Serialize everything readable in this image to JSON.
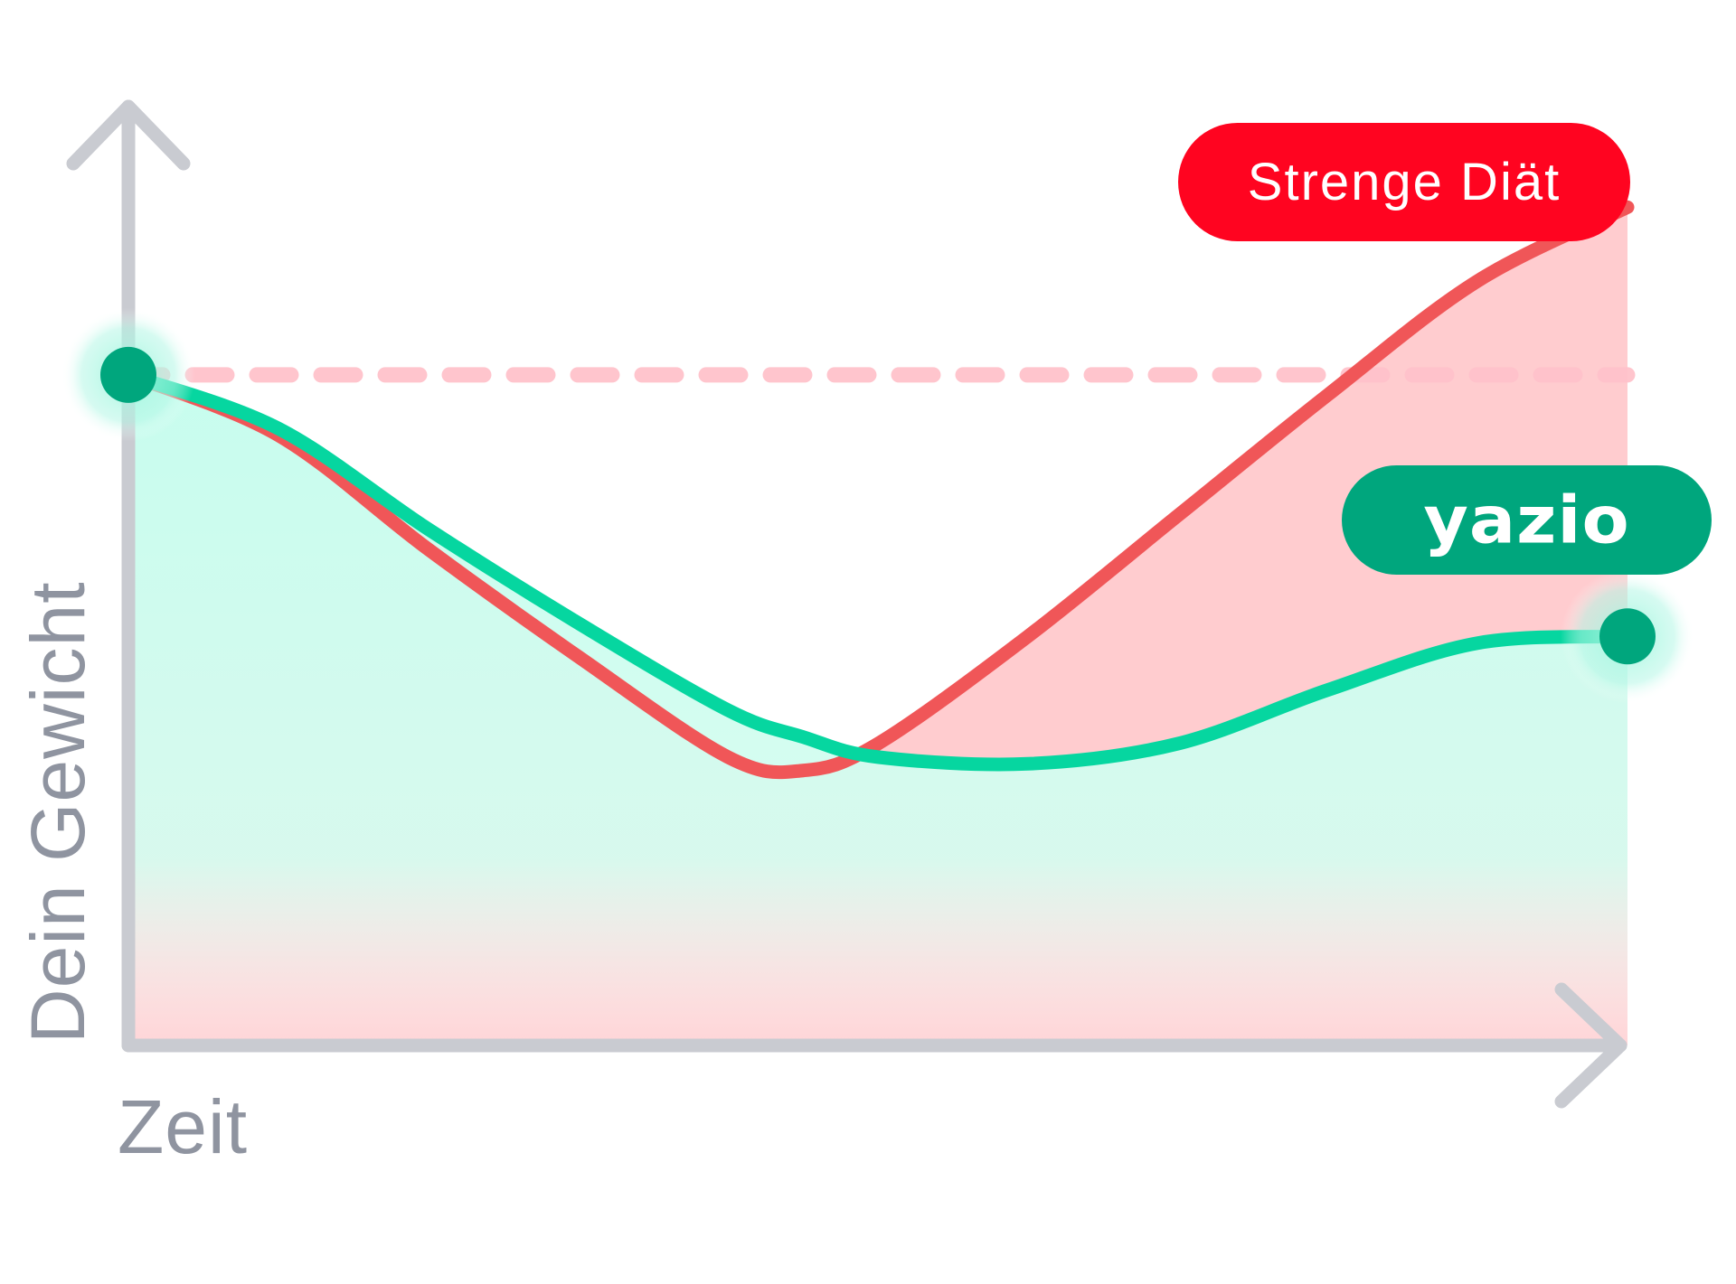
{
  "chart_data": {
    "type": "line",
    "x": [
      0,
      10,
      20,
      30,
      40,
      45,
      50,
      60,
      70,
      80,
      90,
      100
    ],
    "series": [
      {
        "name": "Strenge Diät",
        "color": "#f05658",
        "fill": "#ffc9cc",
        "values": [
          100,
          91,
          74,
          58,
          43,
          41,
          45,
          61,
          79,
          97,
          114,
          125
        ]
      },
      {
        "name": "yazio",
        "color": "#06d6a0",
        "fill": "#c7fdee",
        "values": [
          100,
          92,
          77,
          63,
          50,
          46,
          43,
          42,
          45,
          53,
          60,
          61
        ]
      }
    ],
    "baseline": 100,
    "xlabel": "Zeit",
    "ylabel": "Dein Gewicht",
    "xlim": [
      0,
      100
    ],
    "ylim": [
      0,
      140
    ],
    "grid": false,
    "ticks": false,
    "legend": "pill labels at right"
  },
  "labels": {
    "strict": "Strenge Diät",
    "yazio": "yazio"
  },
  "colors": {
    "axis": "#c9cbd1",
    "axis_text": "#8f94a0",
    "strict": "#ff0420",
    "strict_line": "#f05658",
    "strict_fill": "#ffc9cc",
    "baseline": "#ffc2cb",
    "yazio_pill": "#00a67d",
    "yazio_line": "#06d6a0",
    "yazio_fill": "#c7fdee",
    "marker": "#00a67d",
    "marker_halo": "#9ff6de"
  }
}
